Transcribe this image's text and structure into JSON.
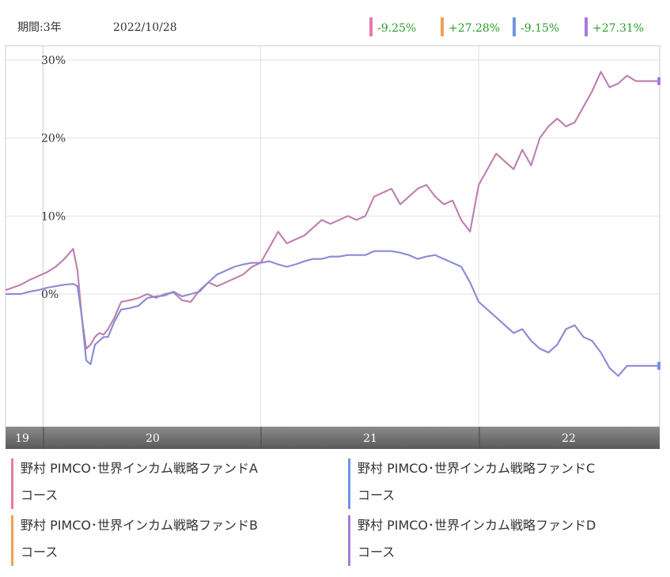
{
  "header": {
    "period": "期間:3年",
    "date": "2022/10/28"
  },
  "colors": {
    "A": "#e77aa8",
    "B": "#f0a054",
    "C": "#6f95e3",
    "D": "#a77bdc",
    "up": "#2a9d2a",
    "down": "#2a9d2a"
  },
  "returns": [
    {
      "key": "A",
      "value": "-9.25%"
    },
    {
      "key": "B",
      "value": "+27.28%"
    },
    {
      "key": "C",
      "value": "-9.15%"
    },
    {
      "key": "D",
      "value": "+27.31%"
    }
  ],
  "legend": [
    {
      "key": "A",
      "line1": "野村 PIMCO･世界インカム戦略ファンドA",
      "line2": "コース"
    },
    {
      "key": "C",
      "line1": "野村 PIMCO･世界インカム戦略ファンドC",
      "line2": "コース"
    },
    {
      "key": "B",
      "line1": "野村 PIMCO･世界インカム戦略ファンドB",
      "line2": "コース"
    },
    {
      "key": "D",
      "line1": "野村 PIMCO･世界インカム戦略ファンドD",
      "line2": "コース"
    }
  ],
  "chart_data": {
    "type": "line",
    "y_ticks": [
      "30%",
      "20%",
      "10%",
      "0%"
    ],
    "y_tick_values": [
      30,
      20,
      10,
      0
    ],
    "ylim": [
      -17,
      30
    ],
    "x_ticks": [
      "19",
      "20",
      "21",
      "22"
    ],
    "x_tick_positions": [
      2019.83,
      2020.0,
      2021.0,
      2022.0
    ],
    "xlim": [
      2019.83,
      2022.83
    ],
    "grid": true,
    "series": [
      {
        "key": "high",
        "note": "B and D overlap (+27.28% / +27.31%)",
        "x": [
          2019.83,
          2019.86,
          2019.9,
          2019.94,
          2019.98,
          2020.02,
          2020.06,
          2020.1,
          2020.14,
          2020.16,
          2020.18,
          2020.2,
          2020.22,
          2020.24,
          2020.26,
          2020.28,
          2020.3,
          2020.33,
          2020.36,
          2020.4,
          2020.44,
          2020.48,
          2020.52,
          2020.56,
          2020.6,
          2020.64,
          2020.68,
          2020.72,
          2020.76,
          2020.8,
          2020.84,
          2020.88,
          2020.92,
          2020.96,
          2021.0,
          2021.04,
          2021.08,
          2021.12,
          2021.16,
          2021.2,
          2021.24,
          2021.28,
          2021.32,
          2021.36,
          2021.4,
          2021.44,
          2021.48,
          2021.52,
          2021.56,
          2021.6,
          2021.64,
          2021.68,
          2021.72,
          2021.76,
          2021.8,
          2021.84,
          2021.88,
          2021.92,
          2021.96,
          2022.0,
          2022.04,
          2022.08,
          2022.12,
          2022.16,
          2022.2,
          2022.24,
          2022.28,
          2022.32,
          2022.36,
          2022.4,
          2022.44,
          2022.48,
          2022.52,
          2022.56,
          2022.6,
          2022.64,
          2022.68,
          2022.72,
          2022.76,
          2022.8,
          2022.83
        ],
        "values": [
          0.5,
          0.8,
          1.2,
          1.8,
          2.3,
          2.8,
          3.5,
          4.5,
          5.8,
          3.0,
          -3.0,
          -7.0,
          -6.5,
          -5.5,
          -5.0,
          -5.2,
          -4.5,
          -3.0,
          -1.0,
          -0.8,
          -0.5,
          0.0,
          -0.5,
          0.0,
          0.2,
          -0.8,
          -1.0,
          0.5,
          1.5,
          1.0,
          1.5,
          2.0,
          2.5,
          3.5,
          4.0,
          6.0,
          8.0,
          6.5,
          7.0,
          7.5,
          8.5,
          9.5,
          9.0,
          9.5,
          10.0,
          9.5,
          10.0,
          12.5,
          13.0,
          13.5,
          11.5,
          12.5,
          13.5,
          14.0,
          12.5,
          11.5,
          12.0,
          9.5,
          8.0,
          14.0,
          16.0,
          18.0,
          17.0,
          16.0,
          18.5,
          16.5,
          20.0,
          21.5,
          22.5,
          21.5,
          22.0,
          24.0,
          26.0,
          28.5,
          26.5,
          27.0,
          28.0,
          27.3,
          27.3,
          27.3,
          27.3
        ]
      },
      {
        "key": "low",
        "note": "A and C overlap (-9.25% / -9.15%)",
        "x": [
          2019.83,
          2019.86,
          2019.9,
          2019.94,
          2019.98,
          2020.02,
          2020.06,
          2020.1,
          2020.14,
          2020.16,
          2020.18,
          2020.2,
          2020.22,
          2020.24,
          2020.26,
          2020.28,
          2020.3,
          2020.33,
          2020.36,
          2020.4,
          2020.44,
          2020.48,
          2020.52,
          2020.56,
          2020.6,
          2020.64,
          2020.68,
          2020.72,
          2020.76,
          2020.8,
          2020.84,
          2020.88,
          2020.92,
          2020.96,
          2021.0,
          2021.04,
          2021.08,
          2021.12,
          2021.16,
          2021.2,
          2021.24,
          2021.28,
          2021.32,
          2021.36,
          2021.4,
          2021.44,
          2021.48,
          2021.52,
          2021.56,
          2021.6,
          2021.64,
          2021.68,
          2021.72,
          2021.76,
          2021.8,
          2021.84,
          2021.88,
          2021.92,
          2021.96,
          2022.0,
          2022.04,
          2022.08,
          2022.12,
          2022.16,
          2022.2,
          2022.24,
          2022.28,
          2022.32,
          2022.36,
          2022.4,
          2022.44,
          2022.48,
          2022.52,
          2022.56,
          2022.6,
          2022.64,
          2022.68,
          2022.72,
          2022.76,
          2022.8,
          2022.83
        ],
        "values": [
          0.0,
          0.0,
          0.0,
          0.3,
          0.5,
          0.8,
          1.0,
          1.2,
          1.3,
          1.0,
          -3.0,
          -8.5,
          -9.0,
          -6.5,
          -6.0,
          -5.5,
          -5.5,
          -3.5,
          -2.0,
          -1.8,
          -1.5,
          -0.5,
          -0.3,
          -0.2,
          0.3,
          -0.3,
          0.0,
          0.3,
          1.5,
          2.5,
          3.0,
          3.5,
          3.8,
          4.0,
          4.0,
          4.2,
          3.8,
          3.5,
          3.8,
          4.2,
          4.5,
          4.5,
          4.8,
          4.8,
          5.0,
          5.0,
          5.0,
          5.5,
          5.5,
          5.5,
          5.3,
          5.0,
          4.5,
          4.8,
          5.0,
          4.5,
          4.0,
          3.5,
          1.5,
          -1.0,
          -2.0,
          -3.0,
          -4.0,
          -5.0,
          -4.5,
          -6.0,
          -7.0,
          -7.5,
          -6.5,
          -4.5,
          -4.0,
          -5.5,
          -6.0,
          -7.5,
          -9.5,
          -10.5,
          -9.2,
          -9.2,
          -9.2,
          -9.2,
          -9.2
        ]
      }
    ]
  }
}
